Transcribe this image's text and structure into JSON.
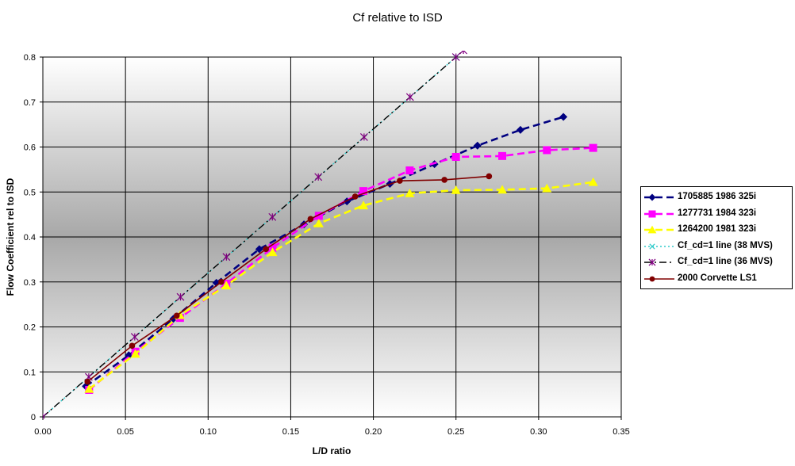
{
  "chart_data": {
    "type": "line",
    "title": "Cf relative to ISD",
    "xlabel": "L/D ratio",
    "ylabel": "Flow Coefficient rel to ISD",
    "xlim": [
      0,
      0.35
    ],
    "ylim": [
      0,
      0.8
    ],
    "x_ticks": [
      "0.00",
      "0.05",
      "0.10",
      "0.15",
      "0.20",
      "0.25",
      "0.30",
      "0.35"
    ],
    "y_ticks": [
      "0",
      "0.1",
      "0.2",
      "0.3",
      "0.4",
      "0.5",
      "0.6",
      "0.7",
      "0.8"
    ],
    "grid": true,
    "legend_position": "right",
    "series": [
      {
        "name": "1705885 1986 325i",
        "color": "#000080",
        "marker": "diamond",
        "dash": "dash",
        "points": [
          [
            0.026,
            0.068
          ],
          [
            0.052,
            0.137
          ],
          [
            0.079,
            0.218
          ],
          [
            0.105,
            0.298
          ],
          [
            0.131,
            0.373
          ],
          [
            0.158,
            0.428
          ],
          [
            0.184,
            0.479
          ],
          [
            0.21,
            0.518
          ],
          [
            0.237,
            0.562
          ],
          [
            0.263,
            0.603
          ],
          [
            0.289,
            0.638
          ],
          [
            0.315,
            0.667
          ]
        ]
      },
      {
        "name": "1277731 1984 323i",
        "color": "#ff00ff",
        "marker": "square",
        "dash": "dash",
        "points": [
          [
            0.028,
            0.06
          ],
          [
            0.056,
            0.145
          ],
          [
            0.083,
            0.22
          ],
          [
            0.111,
            0.296
          ],
          [
            0.139,
            0.376
          ],
          [
            0.167,
            0.447
          ],
          [
            0.194,
            0.502
          ],
          [
            0.222,
            0.548
          ],
          [
            0.25,
            0.578
          ],
          [
            0.278,
            0.58
          ],
          [
            0.305,
            0.593
          ],
          [
            0.333,
            0.598
          ]
        ]
      },
      {
        "name": "1264200 1981 323i",
        "color": "#ffff00",
        "marker": "triangle",
        "dash": "dash",
        "points": [
          [
            0.028,
            0.062
          ],
          [
            0.056,
            0.14
          ],
          [
            0.083,
            0.226
          ],
          [
            0.111,
            0.292
          ],
          [
            0.139,
            0.366
          ],
          [
            0.167,
            0.43
          ],
          [
            0.194,
            0.47
          ],
          [
            0.222,
            0.497
          ],
          [
            0.25,
            0.504
          ],
          [
            0.278,
            0.505
          ],
          [
            0.305,
            0.508
          ],
          [
            0.333,
            0.522
          ]
        ]
      },
      {
        "name": "Cf_cd=1 line (38 MVS)",
        "color": "#33cccc",
        "marker": "x",
        "dash": "dot",
        "points": [
          [
            0,
            0
          ],
          [
            0.25,
            0.8
          ]
        ]
      },
      {
        "name": "Cf_cd=1 line (36 MVS)",
        "color": "#000000",
        "marker": "star",
        "dash": "dashdot",
        "points": [
          [
            0,
            0
          ],
          [
            0.0278,
            0.0889
          ],
          [
            0.0556,
            0.1778
          ],
          [
            0.0833,
            0.2667
          ],
          [
            0.1111,
            0.3556
          ],
          [
            0.1389,
            0.4444
          ],
          [
            0.1667,
            0.5333
          ],
          [
            0.1944,
            0.6222
          ],
          [
            0.2222,
            0.7111
          ],
          [
            0.25,
            0.8
          ],
          [
            0.2545,
            0.815
          ]
        ]
      },
      {
        "name": "2000 Corvette LS1",
        "color": "#800000",
        "marker": "circle",
        "dash": "solid",
        "points": [
          [
            0.027,
            0.078
          ],
          [
            0.054,
            0.158
          ],
          [
            0.081,
            0.225
          ],
          [
            0.108,
            0.3
          ],
          [
            0.135,
            0.373
          ],
          [
            0.162,
            0.44
          ],
          [
            0.189,
            0.49
          ],
          [
            0.216,
            0.525
          ],
          [
            0.243,
            0.527
          ],
          [
            0.27,
            0.535
          ]
        ]
      }
    ]
  }
}
